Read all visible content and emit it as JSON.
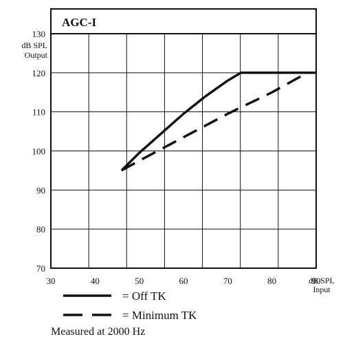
{
  "chart_data": {
    "type": "line",
    "title": "AGC-I",
    "ylabel_line1": "dB SPL",
    "ylabel_line2": "Output",
    "xlabel_line1": "dB SPL",
    "xlabel_line2": "Input",
    "xlim": [
      30,
      90
    ],
    "ylim": [
      70,
      130
    ],
    "x_ticks": [
      30,
      40,
      50,
      60,
      70,
      80,
      90
    ],
    "y_ticks": [
      70,
      80,
      90,
      100,
      110,
      120,
      130
    ],
    "grid": true,
    "legend_position": "bottom-left",
    "series": [
      {
        "name": "= Off TK",
        "style": "solid",
        "color": "#111111",
        "x": [
          46,
          50,
          55,
          60,
          65,
          70,
          73,
          80,
          85,
          90
        ],
        "y": [
          95,
          99.5,
          104.5,
          109.5,
          114,
          118,
          120,
          120,
          120,
          120
        ]
      },
      {
        "name": "= Minimum TK",
        "style": "dashed",
        "color": "#111111",
        "x": [
          46,
          50,
          60,
          70,
          80,
          88
        ],
        "y": [
          95,
          97.5,
          103.5,
          109.5,
          115,
          120
        ]
      }
    ],
    "note": "Measured at 2000 Hz"
  }
}
